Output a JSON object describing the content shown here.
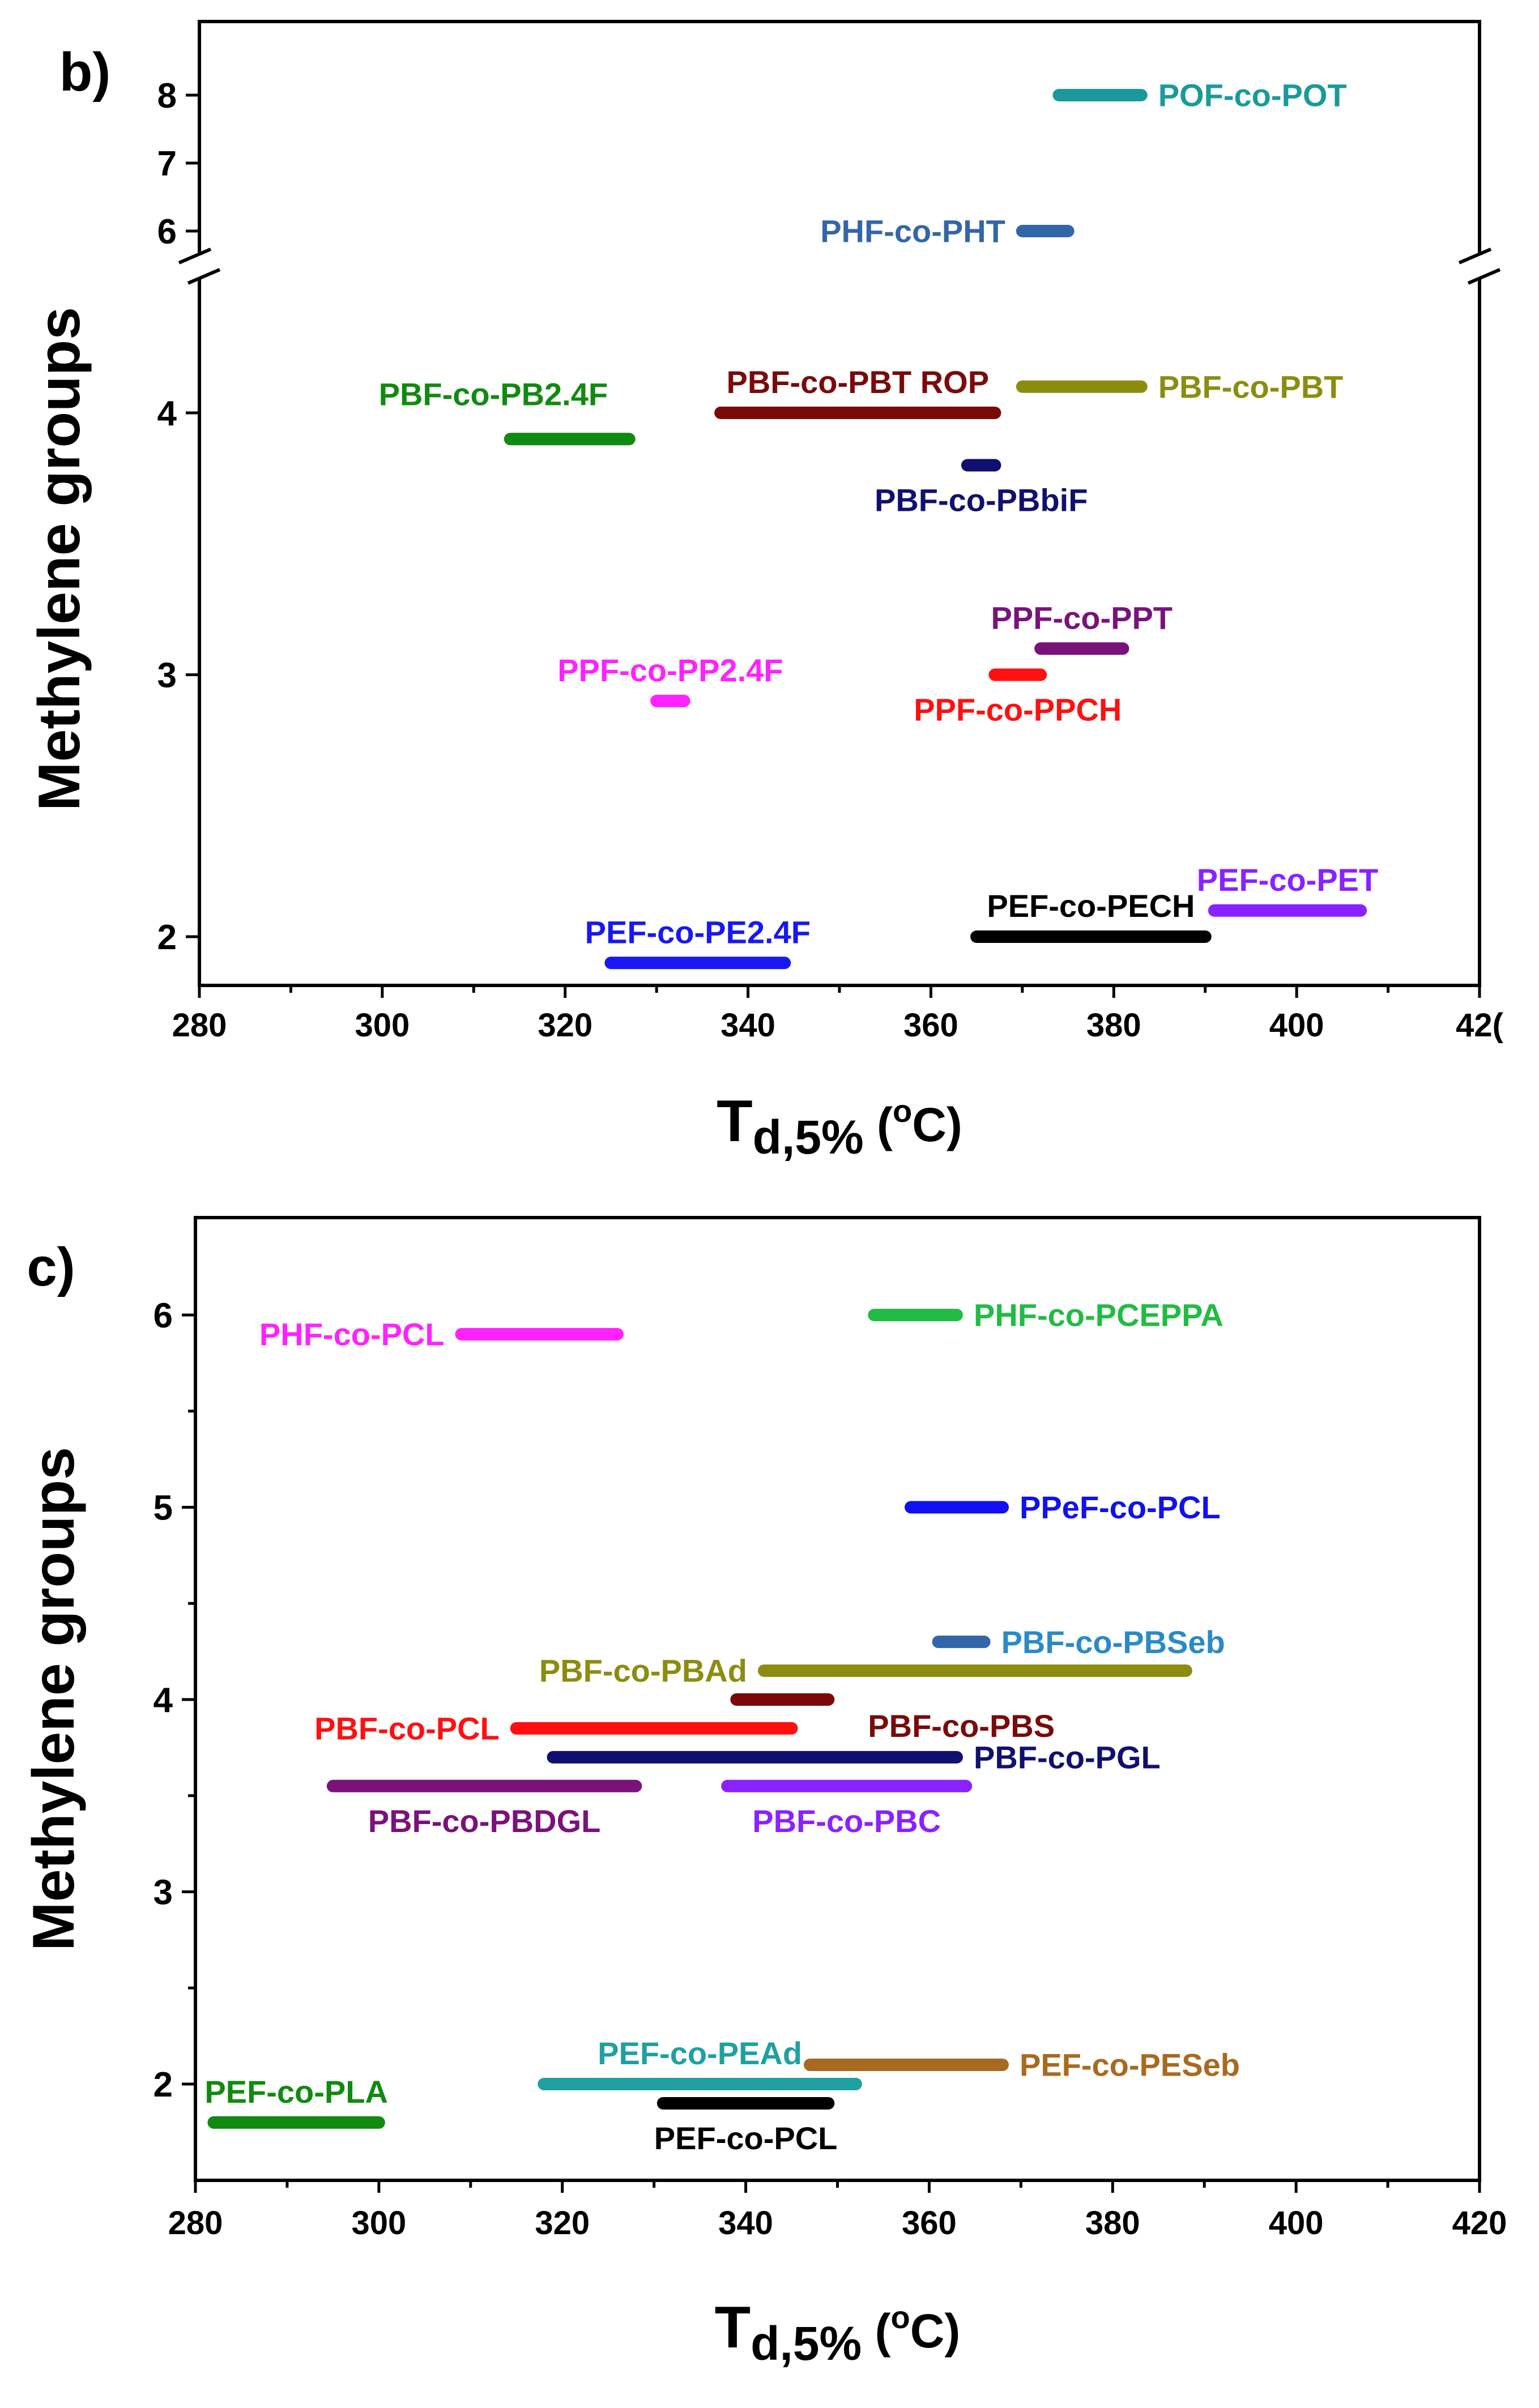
{
  "chart_data": [
    {
      "panel_label": "b)",
      "type": "range",
      "xlabel": {
        "main": "T",
        "sub": "d,5%",
        "unit_open": " (",
        "unit_sup": "o",
        "unit_main": "C",
        "unit_close": ")"
      },
      "ylabel": "Methylene groups",
      "xlim": [
        280,
        420
      ],
      "x_ticks": [
        280,
        300,
        320,
        340,
        360,
        380,
        400
      ],
      "x_tick_last_partial": "42(",
      "y_axis_break": true,
      "y_ticks_upper": [
        6,
        7,
        8
      ],
      "y_ticks_lower": [
        2,
        3,
        4
      ],
      "series": [
        {
          "name": "POF-co-POT",
          "x": [
            374,
            383
          ],
          "y": 8,
          "color": "#1a9a9a",
          "label_pos": "right"
        },
        {
          "name": "PHF-co-PHT",
          "x": [
            370,
            375
          ],
          "y": 6,
          "color": "#3366a8",
          "label_pos": "left"
        },
        {
          "name": "PBF-co-PB2.4F",
          "x": [
            314,
            327
          ],
          "y": 3.9,
          "color": "#108a10",
          "label_pos": "above-left"
        },
        {
          "name": "PBF-co-PBT ROP",
          "x": [
            337,
            367
          ],
          "y": 4.0,
          "color": "#7a0a0a",
          "label_pos": "above"
        },
        {
          "name": "PBF-co-PBT",
          "x": [
            370,
            383
          ],
          "y": 4.1,
          "color": "#8c8c10",
          "label_pos": "right"
        },
        {
          "name": "PBF-co-PBbiF",
          "x": [
            364,
            367
          ],
          "y": 3.8,
          "color": "#101070",
          "label_pos": "below"
        },
        {
          "name": "PPF-co-PPT",
          "x": [
            372,
            381
          ],
          "y": 3.1,
          "color": "#7a127a",
          "label_pos": "above"
        },
        {
          "name": "PPF-co-PPCH",
          "x": [
            367,
            372
          ],
          "y": 3.0,
          "color": "#ff1010",
          "label_pos": "below"
        },
        {
          "name": "PPF-co-PP2.4F",
          "x": [
            330,
            333
          ],
          "y": 2.9,
          "color": "#ff22ff",
          "label_pos": "above"
        },
        {
          "name": "PEF-co-PET",
          "x": [
            391,
            407
          ],
          "y": 2.1,
          "color": "#8a22ff",
          "label_pos": "above"
        },
        {
          "name": "PEF-co-PECH",
          "x": [
            365,
            390
          ],
          "y": 2.0,
          "color": "#000000",
          "label_pos": "above"
        },
        {
          "name": "PEF-co-PE2.4F",
          "x": [
            325,
            344
          ],
          "y": 1.9,
          "color": "#1818f0",
          "label_pos": "above"
        }
      ]
    },
    {
      "panel_label": "c)",
      "type": "range",
      "xlabel": {
        "main": "T",
        "sub": "d,5%",
        "unit_open": " (",
        "unit_sup": "o",
        "unit_main": "C",
        "unit_close": ")"
      },
      "ylabel": "Methylene groups",
      "xlim": [
        280,
        420
      ],
      "ylim": [
        1.5,
        6.5
      ],
      "x_ticks": [
        280,
        300,
        320,
        340,
        360,
        380,
        400,
        420
      ],
      "y_ticks": [
        2,
        3,
        4,
        5,
        6
      ],
      "series": [
        {
          "name": "PHF-co-PCL",
          "x": [
            309,
            326
          ],
          "y": 5.9,
          "color": "#ff22ff",
          "label_pos": "left"
        },
        {
          "name": "PHF-co-PCEPPA",
          "x": [
            354,
            363
          ],
          "y": 6.0,
          "color": "#22bb44",
          "label_pos": "right"
        },
        {
          "name": "PPeF-co-PCL",
          "x": [
            358,
            368
          ],
          "y": 5.0,
          "color": "#1010f0",
          "label_pos": "right"
        },
        {
          "name": "PBF-co-PBSeb",
          "x": [
            361,
            366
          ],
          "y": 4.3,
          "color": "#3366a8",
          "label_pos": "right",
          "label_color": "#2a8ac8"
        },
        {
          "name": "PBF-co-PBAd",
          "x": [
            342,
            388
          ],
          "y": 4.15,
          "color": "#8c8c10",
          "label_pos": "left"
        },
        {
          "name": "PBF-co-PBS",
          "x": [
            339,
            349
          ],
          "y": 4.0,
          "color": "#7a0a0a",
          "label_pos": "below-right"
        },
        {
          "name": "PBF-co-PCL",
          "x": [
            315,
            345
          ],
          "y": 3.85,
          "color": "#ff1010",
          "label_pos": "left"
        },
        {
          "name": "PBF-co-PGL",
          "x": [
            319,
            363
          ],
          "y": 3.7,
          "color": "#101070",
          "label_pos": "right"
        },
        {
          "name": "PBF-co-PBDGL",
          "x": [
            295,
            328
          ],
          "y": 3.55,
          "color": "#7a127a",
          "label_pos": "below"
        },
        {
          "name": "PBF-co-PBC",
          "x": [
            338,
            364
          ],
          "y": 3.55,
          "color": "#8a22ff",
          "label_pos": "below"
        },
        {
          "name": "PEF-co-PESeb",
          "x": [
            347,
            368
          ],
          "y": 2.1,
          "color": "#a86a20",
          "label_pos": "right"
        },
        {
          "name": "PEF-co-PEAd",
          "x": [
            318,
            352
          ],
          "y": 2.0,
          "color": "#20a0a0",
          "label_pos": "above"
        },
        {
          "name": "PEF-co-PCL",
          "x": [
            331,
            349
          ],
          "y": 1.9,
          "color": "#000000",
          "label_pos": "below"
        },
        {
          "name": "PEF-co-PLA",
          "x": [
            282,
            300
          ],
          "y": 1.8,
          "color": "#108a10",
          "label_pos": "above"
        }
      ]
    }
  ]
}
